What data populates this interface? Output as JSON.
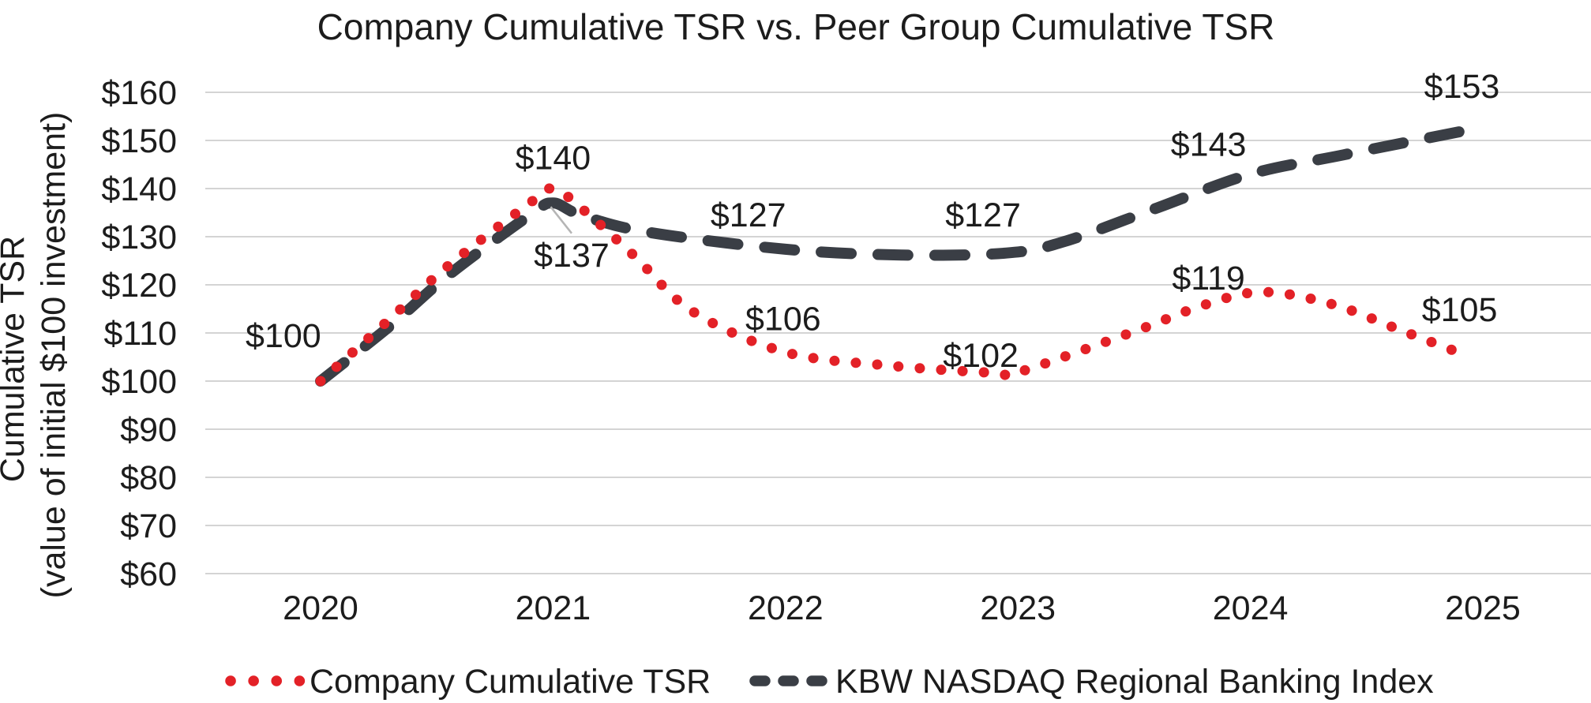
{
  "page": {
    "background": "#ffffff"
  },
  "chart_data": {
    "type": "line",
    "title": "Company Cumulative TSR vs. Peer Group Cumulative TSR",
    "ylabel": "Cumulative TSR",
    "ylabel_sub": "(value of initial $100 investment)",
    "xlabel": "",
    "x_values": [
      2020,
      2021,
      2022,
      2023,
      2024,
      2025
    ],
    "x_categories": [
      "2020",
      "2021",
      "2022",
      "2023",
      "2024",
      "2025"
    ],
    "y_tick_values": [
      160,
      150,
      140,
      130,
      120,
      110,
      100,
      90,
      80,
      70,
      60
    ],
    "y_tick_labels": [
      "$160",
      "$150",
      "$140",
      "$130",
      "$120",
      "$110",
      "$100",
      "$90",
      "$80",
      "$70",
      "$60"
    ],
    "ylim": [
      60,
      160
    ],
    "grid": "horizontal",
    "legend_position": "bottom",
    "colors": {
      "company": "#e32127",
      "index": "#3a3e45",
      "gridline": "#d4d4d4",
      "text": "#1c1c1c",
      "callout": "#b5b5b5"
    },
    "series": [
      {
        "name": "KBW NASDAQ Regional Banking Index",
        "key": "index",
        "style": "dashed",
        "color": "#3a3e45",
        "values": [
          100,
          137,
          127,
          127,
          143,
          153
        ],
        "curve": [
          [
            2020,
            100
          ],
          [
            2020.3,
            111.5
          ],
          [
            2020.55,
            122
          ],
          [
            2020.9,
            134.5
          ],
          [
            2021,
            137
          ],
          [
            2021.12,
            134.5
          ],
          [
            2021.4,
            131
          ],
          [
            2022,
            127.4
          ],
          [
            2022.5,
            126.2
          ],
          [
            2022.95,
            126.6
          ],
          [
            2023.2,
            129
          ],
          [
            2023.6,
            136
          ],
          [
            2024,
            143
          ],
          [
            2024.4,
            147
          ],
          [
            2024.95,
            152.3
          ]
        ],
        "point_labels": [
          {
            "text": "$137",
            "year": 2021.08,
            "value": 126.2,
            "callout": {
              "from_year": 2020.99,
              "from_value": 136.2,
              "to_year": 2021.08,
              "to_value": 130.7
            }
          },
          {
            "text": "$127",
            "year": 2021.84,
            "value": 134.6
          },
          {
            "text": "$127",
            "year": 2022.85,
            "value": 134.6
          },
          {
            "text": "$143",
            "year": 2023.82,
            "value": 149.3
          },
          {
            "text": "$153",
            "year": 2024.91,
            "value": 161.3
          }
        ]
      },
      {
        "name": "Company Cumulative TSR",
        "key": "company",
        "style": "dotted",
        "color": "#e32127",
        "values": [
          100,
          140,
          106,
          102,
          119,
          105
        ],
        "curve": [
          [
            2020,
            100
          ],
          [
            2020.3,
            113
          ],
          [
            2020.55,
            124
          ],
          [
            2020.9,
            137
          ],
          [
            2021,
            140
          ],
          [
            2021.12,
            136
          ],
          [
            2021.35,
            126
          ],
          [
            2021.6,
            114.5
          ],
          [
            2022,
            106
          ],
          [
            2022.45,
            103.2
          ],
          [
            2022.9,
            101.7
          ],
          [
            2023,
            101.8
          ],
          [
            2023.5,
            110.3
          ],
          [
            2023.8,
            115.8
          ],
          [
            2024.05,
            118.5
          ],
          [
            2024.35,
            116
          ],
          [
            2024.65,
            110.5
          ],
          [
            2024.92,
            105.5
          ]
        ],
        "point_labels": [
          {
            "text": "$100",
            "year": 2019.84,
            "value": 109.5
          },
          {
            "text": "$140",
            "year": 2021.0,
            "value": 146.5
          },
          {
            "text": "$106",
            "year": 2021.99,
            "value": 113.0
          },
          {
            "text": "$102",
            "year": 2022.84,
            "value": 105.4
          },
          {
            "text": "$119",
            "year": 2023.82,
            "value": 121.5
          },
          {
            "text": "$105",
            "year": 2024.9,
            "value": 114.9
          }
        ]
      }
    ],
    "legend": [
      {
        "label": "Company Cumulative TSR",
        "style": "dotted",
        "color": "#e32127"
      },
      {
        "label": "KBW NASDAQ Regional Banking Index",
        "style": "dashed",
        "color": "#3a3e45"
      }
    ]
  }
}
